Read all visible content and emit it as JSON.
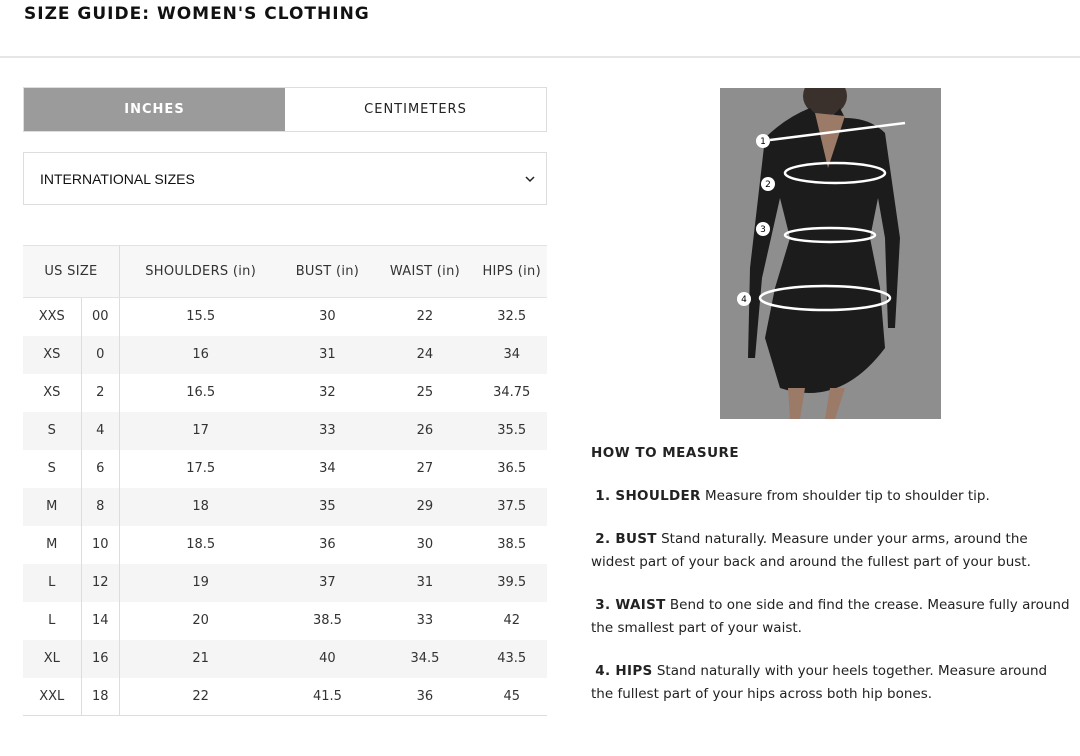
{
  "title": "SIZE GUIDE: WOMEN'S CLOTHING",
  "units": {
    "inches": "INCHES",
    "centimeters": "CENTIMETERS",
    "selected": "INCHES"
  },
  "size_system": {
    "selected": "INTERNATIONAL SIZES"
  },
  "table": {
    "headers": [
      "US SIZE",
      "SHOULDERS (in)",
      "BUST (in)",
      "WAIST (in)",
      "HIPS (in)"
    ],
    "rows": [
      [
        "XXS",
        "00",
        "15.5",
        "30",
        "22",
        "32.5"
      ],
      [
        "XS",
        "0",
        "16",
        "31",
        "24",
        "34"
      ],
      [
        "XS",
        "2",
        "16.5",
        "32",
        "25",
        "34.75"
      ],
      [
        "S",
        "4",
        "17",
        "33",
        "26",
        "35.5"
      ],
      [
        "S",
        "6",
        "17.5",
        "34",
        "27",
        "36.5"
      ],
      [
        "M",
        "8",
        "18",
        "35",
        "29",
        "37.5"
      ],
      [
        "M",
        "10",
        "18.5",
        "36",
        "30",
        "38.5"
      ],
      [
        "L",
        "12",
        "19",
        "37",
        "31",
        "39.5"
      ],
      [
        "L",
        "14",
        "20",
        "38.5",
        "33",
        "42"
      ],
      [
        "XL",
        "16",
        "21",
        "40",
        "34.5",
        "43.5"
      ],
      [
        "XXL",
        "18",
        "22",
        "41.5",
        "36",
        "45"
      ]
    ]
  },
  "figure": {
    "markers": [
      "1",
      "2",
      "3",
      "4"
    ]
  },
  "how_to_measure": {
    "heading": "HOW TO MEASURE",
    "items": [
      {
        "label": "1. SHOULDER",
        "text": " Measure from shoulder tip to shoulder tip."
      },
      {
        "label": "2. BUST",
        "text": "  Stand naturally. Measure under your arms, around the widest part of your back and around the fullest part of your bust."
      },
      {
        "label": "3. WAIST",
        "text": " Bend to one side and find the crease. Measure fully around the smallest part of your waist."
      },
      {
        "label": "4. HIPS",
        "text": " Stand naturally with your heels together. Measure around the fullest part of your hips across both hip bones."
      }
    ]
  }
}
